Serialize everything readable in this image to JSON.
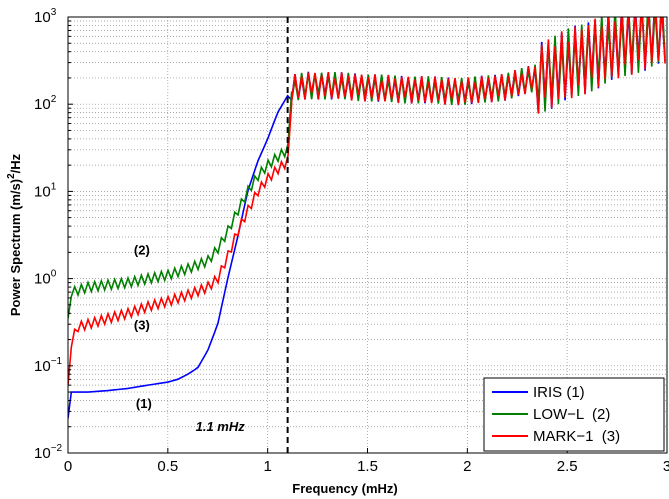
{
  "chart_data": {
    "type": "line",
    "title": "",
    "xlabel": "Frequency (mHz)",
    "ylabel": "Power Spectrum (m/s)²/Hz",
    "ylabel_parts": [
      "Power Spectrum (m/s)",
      "2",
      "/Hz"
    ],
    "xlim": [
      0,
      3
    ],
    "ylim": [
      0.01,
      1000
    ],
    "yscale": "log",
    "grid": true,
    "x_ticks": [
      0,
      0.5,
      1,
      1.5,
      2,
      2.5,
      3
    ],
    "x_tick_labels": [
      "0",
      "0.5",
      "1",
      "1.5",
      "2",
      "2.5",
      "3"
    ],
    "y_ticks": [
      0.01,
      0.1,
      1,
      10,
      100,
      1000
    ],
    "y_tick_labels": [
      {
        "base": "10",
        "exp": "−2"
      },
      {
        "base": "10",
        "exp": "−1"
      },
      {
        "base": "10",
        "exp": "0"
      },
      {
        "base": "10",
        "exp": "1"
      },
      {
        "base": "10",
        "exp": "2"
      },
      {
        "base": "10",
        "exp": "3"
      }
    ],
    "legend_position": "bottom-right",
    "series": [
      {
        "name": "IRIS (1)",
        "color": "#0000ff",
        "style": "smooth",
        "points": [
          [
            0,
            0.025
          ],
          [
            0.01,
            0.05
          ],
          [
            0.1,
            0.05
          ],
          [
            0.2,
            0.052
          ],
          [
            0.3,
            0.055
          ],
          [
            0.4,
            0.06
          ],
          [
            0.5,
            0.065
          ],
          [
            0.55,
            0.07
          ],
          [
            0.6,
            0.08
          ],
          [
            0.65,
            0.095
          ],
          [
            0.7,
            0.15
          ],
          [
            0.75,
            0.3
          ],
          [
            0.8,
            1.0
          ],
          [
            0.85,
            3.0
          ],
          [
            0.9,
            10
          ],
          [
            0.95,
            22
          ],
          [
            1.0,
            40
          ],
          [
            1.05,
            80
          ],
          [
            1.1,
            125
          ]
        ]
      },
      {
        "name": "LOW−L  (2)",
        "color": "#008000",
        "style": "noisy",
        "points": [
          [
            0,
            0.35
          ],
          [
            0.02,
            0.7
          ],
          [
            0.1,
            0.8
          ],
          [
            0.2,
            0.85
          ],
          [
            0.3,
            0.9
          ],
          [
            0.4,
            1.0
          ],
          [
            0.5,
            1.1
          ],
          [
            0.6,
            1.3
          ],
          [
            0.7,
            1.6
          ],
          [
            0.75,
            2.2
          ],
          [
            0.8,
            3.5
          ],
          [
            0.85,
            6
          ],
          [
            0.9,
            10
          ],
          [
            0.95,
            15
          ],
          [
            1.0,
            20
          ],
          [
            1.05,
            25
          ],
          [
            1.1,
            30
          ],
          [
            1.12,
            140
          ]
        ]
      },
      {
        "name": "MARK−1  (3)",
        "color": "#ff0000",
        "style": "noisy",
        "points": [
          [
            0,
            0.06
          ],
          [
            0.02,
            0.2
          ],
          [
            0.05,
            0.28
          ],
          [
            0.1,
            0.3
          ],
          [
            0.2,
            0.35
          ],
          [
            0.3,
            0.4
          ],
          [
            0.4,
            0.48
          ],
          [
            0.5,
            0.55
          ],
          [
            0.6,
            0.65
          ],
          [
            0.7,
            0.8
          ],
          [
            0.75,
            1.0
          ],
          [
            0.8,
            1.8
          ],
          [
            0.85,
            3.5
          ],
          [
            0.9,
            6
          ],
          [
            0.95,
            10
          ],
          [
            1.0,
            14
          ],
          [
            1.05,
            18
          ],
          [
            1.1,
            22
          ],
          [
            1.12,
            100
          ]
        ]
      }
    ],
    "shared_high_freq": [
      [
        1.12,
        150
      ],
      [
        1.2,
        165
      ],
      [
        1.4,
        160
      ],
      [
        1.6,
        150
      ],
      [
        1.8,
        145
      ],
      [
        2.0,
        140
      ],
      [
        2.2,
        160
      ],
      [
        2.4,
        220
      ],
      [
        2.6,
        350
      ],
      [
        2.8,
        550
      ],
      [
        3.0,
        750
      ]
    ],
    "vertical_marker": {
      "x": 1.1,
      "label": "1.1 mHz",
      "style": "dashed"
    },
    "annotations": [
      {
        "text": "(1)",
        "x": 0.38,
        "y": 0.033
      },
      {
        "text": "(2)",
        "x": 0.37,
        "y": 1.9
      },
      {
        "text": "(3)",
        "x": 0.37,
        "y": 0.26
      }
    ]
  }
}
